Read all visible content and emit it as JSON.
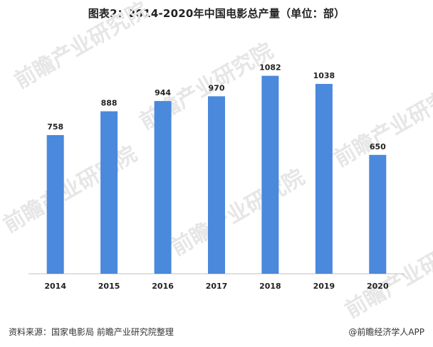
{
  "title": "图表2：2014-2020年中国电影总产量（单位：部）",
  "source": "资料来源：国家电影局 前瞻产业研究院整理",
  "credit": "@前瞻经济学人APP",
  "watermark": "前瞻产业研究院",
  "colors": {
    "bar": "#4a89dc",
    "axis": "#bfbfbf",
    "label": "#222222",
    "watermark": "#e6e6e6"
  },
  "chart_data": {
    "type": "bar",
    "title": "图表2：2014-2020年中国电影总产量（单位：部）",
    "xlabel": "",
    "ylabel": "",
    "categories": [
      "2014",
      "2015",
      "2016",
      "2017",
      "2018",
      "2019",
      "2020"
    ],
    "values": [
      758,
      888,
      944,
      970,
      1082,
      1038,
      650
    ],
    "data_labels": [
      "758",
      "888",
      "944",
      "970",
      "1082",
      "1038",
      "650"
    ],
    "ylim": [
      0,
      1100
    ],
    "grid": false,
    "legend": "none"
  }
}
